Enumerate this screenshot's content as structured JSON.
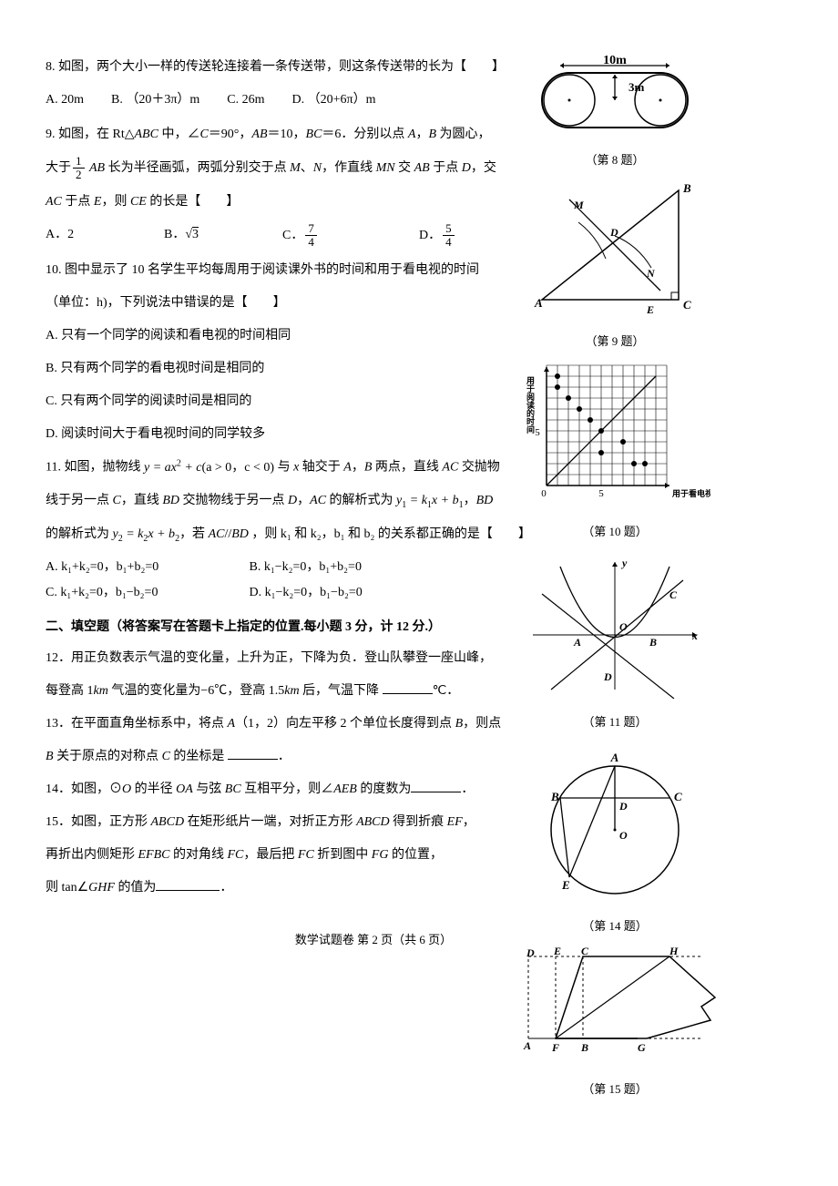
{
  "q8": {
    "text": "8. 如图，两个大小一样的传送轮连接着一条传送带，则这条传送带的长为【　　】",
    "A": "A. 20m",
    "B": "B. （20＋3π）m",
    "C": "C. 26m",
    "D": "D. （20+6π）m",
    "fig": {
      "width_label": "10m",
      "height_label": "3m",
      "caption": "（第 8 题）"
    }
  },
  "q9": {
    "l1_pre": "9. 如图，在 Rt△",
    "l1_abc": "ABC",
    "l1_mid": " 中，∠",
    "l1_C": "C",
    "l1_eq": "＝90°，",
    "l1_AB": "AB",
    "l1_eq2": "＝10，",
    "l1_BC": "BC",
    "l1_eq3": "＝6．分别以点 ",
    "l1_A1": "A",
    "l1_c1": "，",
    "l1_B1": "B",
    "l1_end": " 为圆心，",
    "l2_pre": "大于",
    "l2_AB": " AB",
    "l2_mid": " 长为半径画弧，两弧分别交于点 ",
    "l2_M": "M",
    "l2_c": "、",
    "l2_N": "N",
    "l2_mid2": "，作直线 ",
    "l2_MN": "MN",
    "l2_mid3": " 交 ",
    "l2_AB2": "AB",
    "l2_mid4": " 于点 ",
    "l2_D": "D",
    "l2_end": "，交",
    "l3_AC": "AC",
    "l3_mid": " 于点 ",
    "l3_E": "E",
    "l3_c": "，则 ",
    "l3_CE": "CE",
    "l3_end": " 的长是【　　】",
    "A": "A．2",
    "B_pre": "B．",
    "C_pre": "C．",
    "D_pre": "D．",
    "frac1_num": "1",
    "frac1_den": "2",
    "fracC_num": "7",
    "fracC_den": "4",
    "fracD_num": "5",
    "fracD_den": "4",
    "caption": "（第 9 题）"
  },
  "q10": {
    "l1": "10. 图中显示了 10 名学生平均每周用于阅读课外书的时间和用于看电视的时间",
    "l2": "（单位：h)，下列说法中错误的是【　　】",
    "A": "A. 只有一个同学的阅读和看电视的时间相同",
    "B": "B. 只有两个同学的看电视时间是相同的",
    "C": "C. 只有两个同学的阅读时间是相同的",
    "D": "D. 阅读时间大于看电视时间的同学较多",
    "caption": "（第 10 题）",
    "ylabel": "用于阅读的时间",
    "xlabel": "用于看电视的时间",
    "ticks": [
      "0",
      "5"
    ],
    "points": [
      [
        1,
        10
      ],
      [
        1,
        9
      ],
      [
        2,
        8
      ],
      [
        3,
        7
      ],
      [
        4,
        6
      ],
      [
        5,
        5
      ],
      [
        5,
        3
      ],
      [
        7,
        4
      ],
      [
        8,
        2
      ],
      [
        9,
        2
      ]
    ]
  },
  "q11": {
    "l1_pre": "11. 如图，抛物线 ",
    "l1_eq": "y = ax",
    "l1_sq": "2",
    "l1_plus": " + c",
    "l1_cond": "(a > 0，c < 0) ",
    "l1_mid": "与 ",
    "l1_x": "x",
    "l1_mid2": " 轴交于 ",
    "l1_A": "A",
    "l1_c1": "，",
    "l1_B": "B",
    "l1_mid3": " 两点，直线 ",
    "l1_AC": "AC",
    "l1_end": " 交抛物",
    "l2_pre": "线于另一点 ",
    "l2_C": "C",
    "l2_mid": "，直线 ",
    "l2_BD": "BD",
    "l2_mid2": " 交抛物线于另一点 ",
    "l2_D": "D",
    "l2_c": "，",
    "l2_AC2": "AC",
    "l2_mid3": " 的解析式为 ",
    "l2_y1": "y",
    "l2_s1": "1",
    "l2_eq": " = k",
    "l2_k1": "1",
    "l2_x": "x + b",
    "l2_b1": "1",
    "l2_end": "，",
    "l2_BD2": "BD",
    "l3_pre": "的解析式为 ",
    "l3_y2": "y",
    "l3_s2": "2",
    "l3_eq": " = k",
    "l3_k2": "2",
    "l3_x": "x + b",
    "l3_b2": "2",
    "l3_mid": "，若 ",
    "l3_AC": "AC",
    "l3_par": "//",
    "l3_BD": "BD",
    "l3_mid2": " ，则 ",
    "l3_rel": "k₁ 和 k₂，b₁ 和 b₂ 的关系都正确的是【　　】",
    "A": "A. k₁+k₂=0，b₁+b₂=0",
    "B": "B. k₁−k₂=0，b₁+b₂=0",
    "C": "C. k₁+k₂=0，b₁−b₂=0",
    "D": "D. k₁−k₂=0，b₁−b₂=0",
    "caption": "（第 11 题）"
  },
  "section2": "二、填空题（将答案写在答题卡上指定的位置.每小题 3 分，计 12 分.）",
  "q12": {
    "l1": "12．用正负数表示气温的变化量，上升为正，下降为负．登山队攀登一座山峰，",
    "l2_pre": "每登高 1",
    "l2_km": "km",
    "l2_mid": " 气温的变化量为−6℃，登高 1.5",
    "l2_km2": "km",
    "l2_end": " 后，气温下降 ",
    "l2_unit": "℃．"
  },
  "q13": {
    "l1_pre": "13．在平面直角坐标系中，将点 ",
    "l1_A": "A",
    "l1_coord": "（1，2）向左平移 2 个单位长度得到点 ",
    "l1_B": "B",
    "l1_end": "，则点",
    "l2_B": "B",
    "l2_mid": " 关于原点的对称点 ",
    "l2_C": "C",
    "l2_end": " 的坐标是 ",
    "l2_dot": "．"
  },
  "q14": {
    "pre": "14．如图，⊙",
    "O": "O",
    "mid": " 的半径 ",
    "OA": "OA",
    "mid2": " 与弦 ",
    "BC": "BC",
    "mid3": " 互相平分，则∠",
    "AEB": "AEB",
    "end": " 的度数为",
    "dot": "．",
    "caption": "（第 14 题）"
  },
  "q15": {
    "l1_pre": "15．如图，正方形 ",
    "l1_ABCD": "ABCD",
    "l1_mid": " 在矩形纸片一端，对折正方形 ",
    "l1_ABCD2": "ABCD",
    "l1_mid2": " 得到折痕 ",
    "l1_EF": "EF",
    "l1_end": "，",
    "l2_pre": "再折出内侧矩形 ",
    "l2_EFBC": "EFBC",
    "l2_mid": " 的对角线 ",
    "l2_FC": "FC",
    "l2_mid2": "，最后把 ",
    "l2_FC2": "FC",
    "l2_mid3": " 折到图中 ",
    "l2_FG": "FG",
    "l2_end": " 的位置，",
    "l3_pre": "则 tan∠",
    "l3_GHF": "GHF",
    "l3_end": " 的值为",
    "l3_dot": "．",
    "caption": "（第 15 题）"
  },
  "footer": "数学试题卷  第 2 页（共 6 页）"
}
